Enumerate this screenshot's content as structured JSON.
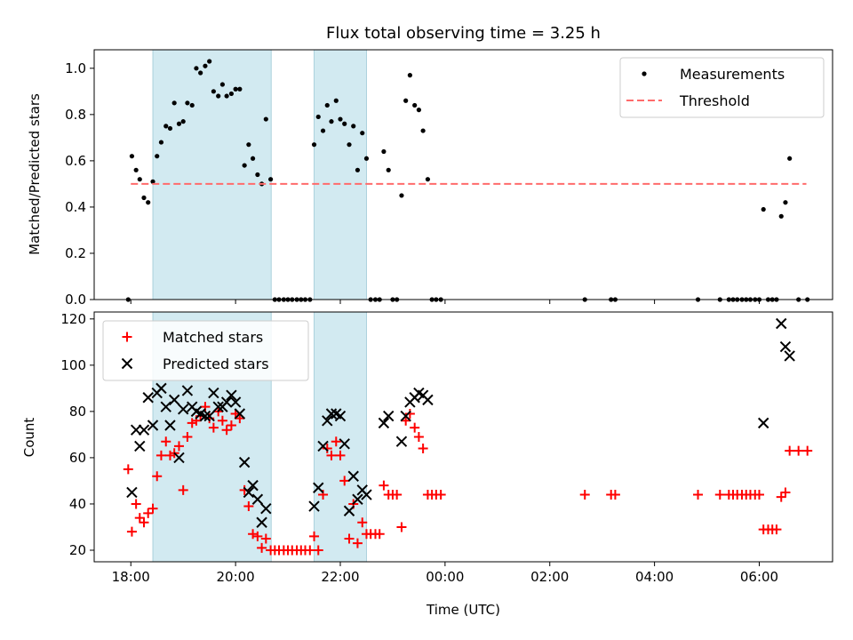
{
  "chart_data": [
    {
      "type": "scatter",
      "title": "Flux total observing time = 3.25 h",
      "xlabel": "",
      "ylabel": "Matched/Predicted stars",
      "x_unit": "hours since 18:00 UTC",
      "xlim": [
        -0.7,
        13.4
      ],
      "ylim": [
        0.0,
        1.08
      ],
      "yticks": [
        "0.0",
        "0.2",
        "0.4",
        "0.6",
        "0.8",
        "1.0"
      ],
      "legend_position": "top-right",
      "shaded_intervals": [
        [
          0.42,
          2.68
        ],
        [
          3.5,
          4.5
        ]
      ],
      "shade_color": "#add8e6",
      "series": [
        {
          "name": "Measurements",
          "color": "#000000",
          "marker": "dot",
          "points": [
            [
              -0.05,
              0.0
            ],
            [
              0.02,
              0.62
            ],
            [
              0.1,
              0.56
            ],
            [
              0.17,
              0.52
            ],
            [
              0.25,
              0.44
            ],
            [
              0.33,
              0.42
            ],
            [
              0.42,
              0.51
            ],
            [
              0.5,
              0.62
            ],
            [
              0.58,
              0.68
            ],
            [
              0.67,
              0.75
            ],
            [
              0.75,
              0.74
            ],
            [
              0.83,
              0.85
            ],
            [
              0.92,
              0.76
            ],
            [
              1.0,
              0.77
            ],
            [
              1.08,
              0.85
            ],
            [
              1.17,
              0.84
            ],
            [
              1.25,
              1.0
            ],
            [
              1.33,
              0.98
            ],
            [
              1.42,
              1.01
            ],
            [
              1.5,
              1.03
            ],
            [
              1.58,
              0.9
            ],
            [
              1.67,
              0.88
            ],
            [
              1.75,
              0.93
            ],
            [
              1.83,
              0.88
            ],
            [
              1.92,
              0.89
            ],
            [
              2.0,
              0.91
            ],
            [
              2.08,
              0.91
            ],
            [
              2.17,
              0.58
            ],
            [
              2.25,
              0.67
            ],
            [
              2.33,
              0.61
            ],
            [
              2.42,
              0.54
            ],
            [
              2.5,
              0.5
            ],
            [
              2.58,
              0.78
            ],
            [
              2.67,
              0.52
            ],
            [
              2.75,
              0.0
            ],
            [
              2.83,
              0.0
            ],
            [
              2.92,
              0.0
            ],
            [
              3.0,
              0.0
            ],
            [
              3.08,
              0.0
            ],
            [
              3.17,
              0.0
            ],
            [
              3.25,
              0.0
            ],
            [
              3.33,
              0.0
            ],
            [
              3.42,
              0.0
            ],
            [
              3.5,
              0.67
            ],
            [
              3.58,
              0.79
            ],
            [
              3.67,
              0.73
            ],
            [
              3.75,
              0.84
            ],
            [
              3.83,
              0.77
            ],
            [
              3.92,
              0.86
            ],
            [
              4.0,
              0.78
            ],
            [
              4.08,
              0.76
            ],
            [
              4.17,
              0.67
            ],
            [
              4.25,
              0.75
            ],
            [
              4.33,
              0.56
            ],
            [
              4.42,
              0.72
            ],
            [
              4.5,
              0.61
            ],
            [
              4.58,
              0.0
            ],
            [
              4.67,
              0.0
            ],
            [
              4.75,
              0.0
            ],
            [
              4.83,
              0.64
            ],
            [
              4.92,
              0.56
            ],
            [
              5.0,
              0.0
            ],
            [
              5.08,
              0.0
            ],
            [
              5.17,
              0.45
            ],
            [
              5.25,
              0.86
            ],
            [
              5.33,
              0.97
            ],
            [
              5.42,
              0.84
            ],
            [
              5.5,
              0.82
            ],
            [
              5.58,
              0.73
            ],
            [
              5.67,
              0.52
            ],
            [
              5.75,
              0.0
            ],
            [
              5.83,
              0.0
            ],
            [
              5.92,
              0.0
            ],
            [
              8.67,
              0.0
            ],
            [
              9.17,
              0.0
            ],
            [
              9.25,
              0.0
            ],
            [
              10.83,
              0.0
            ],
            [
              11.25,
              0.0
            ],
            [
              11.42,
              0.0
            ],
            [
              11.5,
              0.0
            ],
            [
              11.58,
              0.0
            ],
            [
              11.67,
              0.0
            ],
            [
              11.75,
              0.0
            ],
            [
              11.83,
              0.0
            ],
            [
              11.92,
              0.0
            ],
            [
              12.0,
              0.0
            ],
            [
              12.08,
              0.39
            ],
            [
              12.17,
              0.0
            ],
            [
              12.25,
              0.0
            ],
            [
              12.33,
              0.0
            ],
            [
              12.42,
              0.36
            ],
            [
              12.5,
              0.42
            ],
            [
              12.58,
              0.61
            ],
            [
              12.75,
              0.0
            ],
            [
              12.92,
              0.0
            ]
          ]
        },
        {
          "name": "Threshold",
          "color": "#ff6b6b",
          "style": "dashed",
          "x": [
            0.0,
            12.9
          ],
          "values": [
            0.5,
            0.5
          ]
        }
      ]
    },
    {
      "type": "scatter",
      "title": "",
      "xlabel": "Time (UTC)",
      "ylabel": "Count",
      "x_unit": "hours since 18:00 UTC",
      "xlim": [
        -0.7,
        13.4
      ],
      "ylim": [
        15,
        123
      ],
      "yticks": [
        "20",
        "40",
        "60",
        "80",
        "100",
        "120"
      ],
      "xticks": [
        {
          "value": 0,
          "label": "18:00"
        },
        {
          "value": 2,
          "label": "20:00"
        },
        {
          "value": 4,
          "label": "22:00"
        },
        {
          "value": 6,
          "label": "00:00"
        },
        {
          "value": 8,
          "label": "02:00"
        },
        {
          "value": 10,
          "label": "04:00"
        },
        {
          "value": 12,
          "label": "06:00"
        }
      ],
      "legend_position": "top-left",
      "shaded_intervals": [
        [
          0.42,
          2.68
        ],
        [
          3.5,
          4.5
        ]
      ],
      "shade_color": "#add8e6",
      "series": [
        {
          "name": "Matched stars",
          "color": "#ff0000",
          "marker": "plus",
          "points": [
            [
              -0.05,
              55
            ],
            [
              0.02,
              28
            ],
            [
              0.1,
              40
            ],
            [
              0.17,
              34
            ],
            [
              0.25,
              32
            ],
            [
              0.33,
              36
            ],
            [
              0.42,
              38
            ],
            [
              0.5,
              52
            ],
            [
              0.58,
              61
            ],
            [
              0.67,
              67
            ],
            [
              0.75,
              61
            ],
            [
              0.83,
              62
            ],
            [
              0.92,
              65
            ],
            [
              1.0,
              46
            ],
            [
              1.08,
              69
            ],
            [
              1.17,
              75
            ],
            [
              1.25,
              76
            ],
            [
              1.33,
              78
            ],
            [
              1.42,
              82
            ],
            [
              1.5,
              77
            ],
            [
              1.58,
              73
            ],
            [
              1.67,
              80
            ],
            [
              1.75,
              76
            ],
            [
              1.83,
              72
            ],
            [
              1.92,
              74
            ],
            [
              2.0,
              79
            ],
            [
              2.08,
              77
            ],
            [
              2.17,
              46
            ],
            [
              2.25,
              39
            ],
            [
              2.33,
              27
            ],
            [
              2.42,
              26
            ],
            [
              2.5,
              21
            ],
            [
              2.58,
              25
            ],
            [
              2.67,
              20
            ],
            [
              2.75,
              20
            ],
            [
              2.83,
              20
            ],
            [
              2.92,
              20
            ],
            [
              3.0,
              20
            ],
            [
              3.08,
              20
            ],
            [
              3.17,
              20
            ],
            [
              3.25,
              20
            ],
            [
              3.33,
              20
            ],
            [
              3.42,
              20
            ],
            [
              3.5,
              26
            ],
            [
              3.58,
              20
            ],
            [
              3.67,
              44
            ],
            [
              3.75,
              64
            ],
            [
              3.83,
              61
            ],
            [
              3.92,
              67
            ],
            [
              4.0,
              61
            ],
            [
              4.08,
              50
            ],
            [
              4.17,
              25
            ],
            [
              4.25,
              40
            ],
            [
              4.33,
              23
            ],
            [
              4.42,
              32
            ],
            [
              4.5,
              27
            ],
            [
              4.58,
              27
            ],
            [
              4.67,
              27
            ],
            [
              4.75,
              27
            ],
            [
              4.83,
              48
            ],
            [
              4.92,
              44
            ],
            [
              5.0,
              44
            ],
            [
              5.08,
              44
            ],
            [
              5.17,
              30
            ],
            [
              5.25,
              76
            ],
            [
              5.33,
              79
            ],
            [
              5.42,
              73
            ],
            [
              5.5,
              69
            ],
            [
              5.58,
              64
            ],
            [
              5.67,
              44
            ],
            [
              5.75,
              44
            ],
            [
              5.83,
              44
            ],
            [
              5.92,
              44
            ],
            [
              8.67,
              44
            ],
            [
              9.17,
              44
            ],
            [
              9.25,
              44
            ],
            [
              10.83,
              44
            ],
            [
              11.25,
              44
            ],
            [
              11.42,
              44
            ],
            [
              11.5,
              44
            ],
            [
              11.58,
              44
            ],
            [
              11.67,
              44
            ],
            [
              11.75,
              44
            ],
            [
              11.83,
              44
            ],
            [
              11.92,
              44
            ],
            [
              12.0,
              44
            ],
            [
              12.08,
              29
            ],
            [
              12.17,
              29
            ],
            [
              12.25,
              29
            ],
            [
              12.33,
              29
            ],
            [
              12.42,
              43
            ],
            [
              12.5,
              45
            ],
            [
              12.58,
              63
            ],
            [
              12.75,
              63
            ],
            [
              12.92,
              63
            ]
          ]
        },
        {
          "name": "Predicted stars",
          "color": "#000000",
          "marker": "x",
          "points": [
            [
              0.02,
              45
            ],
            [
              0.1,
              72
            ],
            [
              0.17,
              65
            ],
            [
              0.25,
              72
            ],
            [
              0.33,
              86
            ],
            [
              0.42,
              74
            ],
            [
              0.5,
              88
            ],
            [
              0.58,
              90
            ],
            [
              0.67,
              82
            ],
            [
              0.75,
              74
            ],
            [
              0.83,
              85
            ],
            [
              0.92,
              60
            ],
            [
              1.0,
              81
            ],
            [
              1.08,
              89
            ],
            [
              1.17,
              82
            ],
            [
              1.25,
              80
            ],
            [
              1.33,
              79
            ],
            [
              1.42,
              78
            ],
            [
              1.5,
              78
            ],
            [
              1.58,
              88
            ],
            [
              1.67,
              82
            ],
            [
              1.75,
              82
            ],
            [
              1.83,
              84
            ],
            [
              1.92,
              87
            ],
            [
              2.0,
              84
            ],
            [
              2.08,
              79
            ],
            [
              2.17,
              58
            ],
            [
              2.25,
              45
            ],
            [
              2.33,
              48
            ],
            [
              2.42,
              42
            ],
            [
              2.5,
              32
            ],
            [
              2.58,
              38
            ],
            [
              3.5,
              39
            ],
            [
              3.58,
              47
            ],
            [
              3.67,
              65
            ],
            [
              3.75,
              76
            ],
            [
              3.83,
              79
            ],
            [
              3.92,
              79
            ],
            [
              4.0,
              78
            ],
            [
              4.08,
              66
            ],
            [
              4.17,
              37
            ],
            [
              4.25,
              52
            ],
            [
              4.33,
              42
            ],
            [
              4.42,
              46
            ],
            [
              4.5,
              44
            ],
            [
              4.83,
              75
            ],
            [
              4.92,
              78
            ],
            [
              5.17,
              67
            ],
            [
              5.25,
              78
            ],
            [
              5.33,
              84
            ],
            [
              5.42,
              86
            ],
            [
              5.5,
              88
            ],
            [
              5.58,
              87
            ],
            [
              5.67,
              85
            ],
            [
              12.08,
              75
            ],
            [
              12.42,
              118
            ],
            [
              12.5,
              108
            ],
            [
              12.58,
              104
            ]
          ]
        }
      ]
    }
  ]
}
